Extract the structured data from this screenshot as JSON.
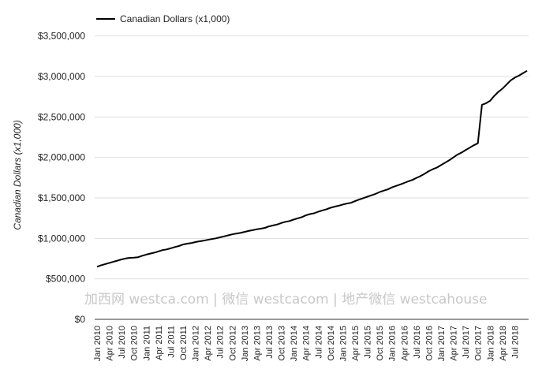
{
  "chart_data": {
    "type": "line",
    "title": "",
    "xlabel": "",
    "ylabel": "Canadian Dollars (x1,000)",
    "ylim": [
      0,
      3750000
    ],
    "y_ticks": [
      0,
      500000,
      1000000,
      1500000,
      2000000,
      2500000,
      3000000,
      3500000
    ],
    "y_tick_labels": [
      "$0",
      "$500,000",
      "$1,000,000",
      "$1,500,000",
      "$2,000,000",
      "$2,500,000",
      "$3,000,000",
      "$3,500,000"
    ],
    "x_tick_labels": [
      "Jan 2010",
      "Apr 2010",
      "Jul 2010",
      "Oct 2010",
      "Jan 2011",
      "Apr 2011",
      "Jul 2011",
      "Oct 2011",
      "Jan 2012",
      "Apr 2012",
      "Jul 2012",
      "Oct 2012",
      "Jan 2013",
      "Apr 2013",
      "Jul 2013",
      "Oct 2013",
      "Jan 2014",
      "Apr 2014",
      "Jul 2014",
      "Oct 2014",
      "Jan 2015",
      "Apr 2015",
      "Jul 2015",
      "Oct 2015",
      "Jan 2016",
      "Apr 2016",
      "Jul 2016",
      "Oct 2016",
      "Jan 2017",
      "Apr 2017",
      "Jul 2017",
      "Oct 2017",
      "Jan 2018",
      "Apr 2018",
      "Jul 2018"
    ],
    "grid": true,
    "legend_position": "top-left",
    "series": [
      {
        "name": "Canadian Dollars (x1,000)",
        "color": "#000000",
        "x": [
          "Jan 2010",
          "Feb 2010",
          "Mar 2010",
          "Apr 2010",
          "May 2010",
          "Jun 2010",
          "Jul 2010",
          "Aug 2010",
          "Sep 2010",
          "Oct 2010",
          "Nov 2010",
          "Dec 2010",
          "Jan 2011",
          "Feb 2011",
          "Mar 2011",
          "Apr 2011",
          "May 2011",
          "Jun 2011",
          "Jul 2011",
          "Aug 2011",
          "Sep 2011",
          "Oct 2011",
          "Nov 2011",
          "Dec 2011",
          "Jan 2012",
          "Feb 2012",
          "Mar 2012",
          "Apr 2012",
          "May 2012",
          "Jun 2012",
          "Jul 2012",
          "Aug 2012",
          "Sep 2012",
          "Oct 2012",
          "Nov 2012",
          "Dec 2012",
          "Jan 2013",
          "Feb 2013",
          "Mar 2013",
          "Apr 2013",
          "May 2013",
          "Jun 2013",
          "Jul 2013",
          "Aug 2013",
          "Sep 2013",
          "Oct 2013",
          "Nov 2013",
          "Dec 2013",
          "Jan 2014",
          "Feb 2014",
          "Mar 2014",
          "Apr 2014",
          "May 2014",
          "Jun 2014",
          "Jul 2014",
          "Aug 2014",
          "Sep 2014",
          "Oct 2014",
          "Nov 2014",
          "Dec 2014",
          "Jan 2015",
          "Feb 2015",
          "Mar 2015",
          "Apr 2015",
          "May 2015",
          "Jun 2015",
          "Jul 2015",
          "Aug 2015",
          "Sep 2015",
          "Oct 2015",
          "Nov 2015",
          "Dec 2015",
          "Jan 2016",
          "Feb 2016",
          "Mar 2016",
          "Apr 2016",
          "May 2016",
          "Jun 2016",
          "Jul 2016",
          "Aug 2016",
          "Sep 2016",
          "Oct 2016",
          "Nov 2016",
          "Dec 2016",
          "Jan 2017",
          "Feb 2017",
          "Mar 2017",
          "Apr 2017",
          "May 2017",
          "Jun 2017",
          "Jul 2017",
          "Aug 2017",
          "Sep 2017",
          "Oct 2017",
          "Nov 2017",
          "Dec 2017",
          "Jan 2018",
          "Feb 2018",
          "Mar 2018",
          "Apr 2018",
          "May 2018",
          "Jun 2018",
          "Jul 2018",
          "Aug 2018",
          "Sep 2018",
          "Oct 2018"
        ],
        "values": [
          650000,
          668000,
          683000,
          697000,
          712000,
          726000,
          740000,
          752000,
          760000,
          763000,
          768000,
          785000,
          800000,
          812000,
          824000,
          840000,
          855000,
          864000,
          878000,
          893000,
          906000,
          924000,
          935000,
          942000,
          955000,
          964000,
          972000,
          982000,
          992000,
          1000000,
          1013000,
          1025000,
          1037000,
          1050000,
          1060000,
          1068000,
          1080000,
          1092000,
          1102000,
          1112000,
          1120000,
          1130000,
          1148000,
          1160000,
          1172000,
          1190000,
          1205000,
          1215000,
          1232000,
          1248000,
          1262000,
          1285000,
          1300000,
          1310000,
          1330000,
          1345000,
          1360000,
          1378000,
          1392000,
          1404000,
          1418000,
          1430000,
          1440000,
          1460000,
          1480000,
          1497000,
          1515000,
          1532000,
          1550000,
          1572000,
          1590000,
          1605000,
          1630000,
          1648000,
          1665000,
          1685000,
          1705000,
          1722000,
          1747000,
          1770000,
          1798000,
          1830000,
          1855000,
          1875000,
          1905000,
          1935000,
          1965000,
          2000000,
          2035000,
          2060000,
          2090000,
          2120000,
          2150000,
          2175000,
          2650000,
          2670000,
          2700000,
          2760000,
          2810000,
          2850000,
          2900000,
          2950000,
          2985000,
          3010000,
          3040000,
          3070000
        ]
      }
    ]
  },
  "watermark": "加西网 westca.com | 微信 westcacom | 地产微信 westcahouse"
}
